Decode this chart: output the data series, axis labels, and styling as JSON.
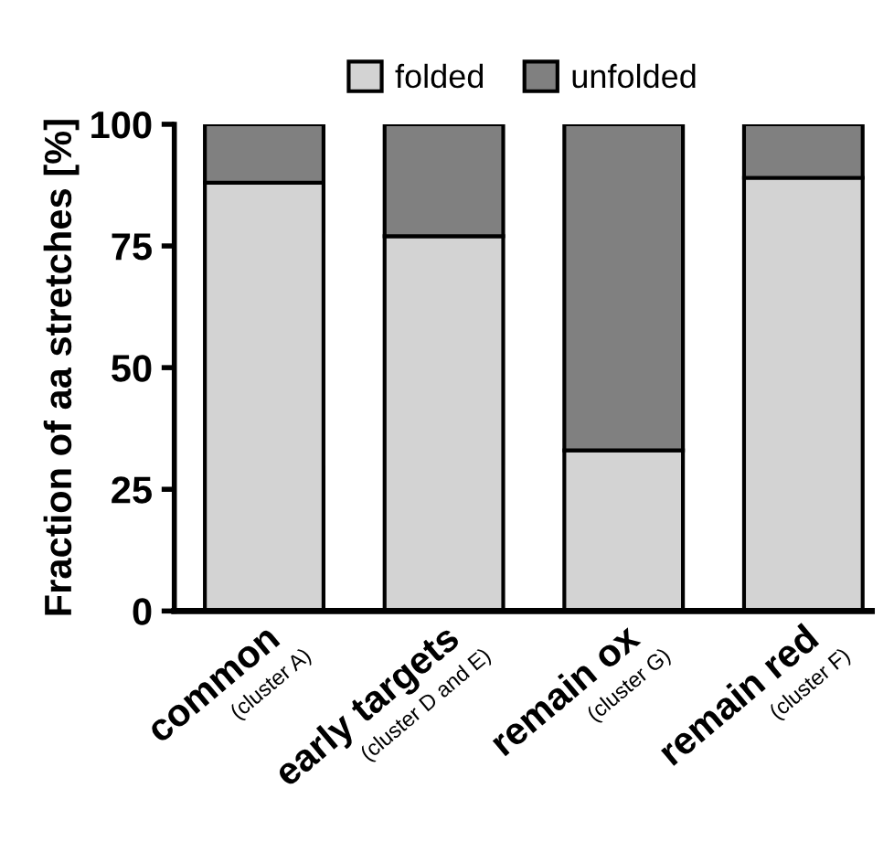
{
  "chart_data": {
    "type": "bar",
    "stacked": true,
    "ylabel": "Fraction of aa stretches [%]",
    "categories": [
      "common\n(cluster A)",
      "early targets\n(cluster D and E)",
      "remain ox\n(cluster G)",
      "remain red\n(cluster F)"
    ],
    "series": [
      {
        "name": "folded",
        "color": "#d3d3d3",
        "values": [
          88,
          77,
          33,
          89
        ]
      },
      {
        "name": "unfolded",
        "color": "#808080",
        "values": [
          12,
          23,
          67,
          11
        ]
      }
    ],
    "ylim": [
      0,
      100
    ],
    "yticks": [
      0,
      25,
      50,
      75,
      100
    ],
    "grid": false,
    "legend": "top"
  }
}
